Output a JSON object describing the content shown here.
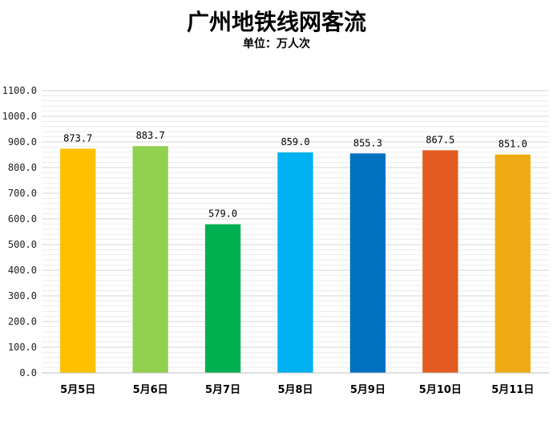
{
  "chart_data": {
    "type": "bar",
    "title": "广州地铁线网客流",
    "subtitle": "单位：万人次",
    "categories": [
      "5月5日",
      "5月6日",
      "5月7日",
      "5月8日",
      "5月9日",
      "5月10日",
      "5月11日"
    ],
    "values": [
      873.7,
      883.7,
      579.0,
      859.0,
      855.3,
      867.5,
      851.0
    ],
    "value_labels": [
      "873.7",
      "883.7",
      "579.0",
      "859.0",
      "855.3",
      "867.5",
      "851.0"
    ],
    "colors": [
      "#FFC000",
      "#92D050",
      "#00B050",
      "#00B0F0",
      "#0070C0",
      "#E35B1E",
      "#F0AB14"
    ],
    "ylim": [
      0,
      1100
    ],
    "yticks": [
      0,
      100,
      200,
      300,
      400,
      500,
      600,
      700,
      800,
      900,
      1000,
      1100
    ],
    "ytick_labels": [
      "0.0",
      "100.0",
      "200.0",
      "300.0",
      "400.0",
      "500.0",
      "600.0",
      "700.0",
      "800.0",
      "900.0",
      "1000.0",
      "1100.0"
    ],
    "grid": true,
    "legend": "none"
  }
}
